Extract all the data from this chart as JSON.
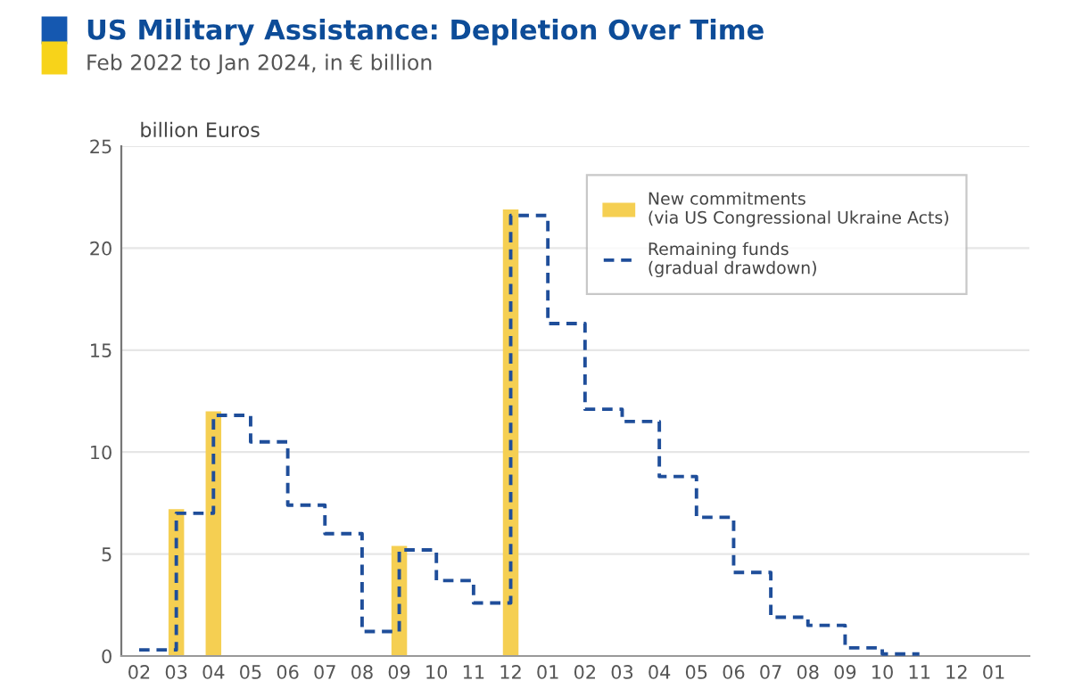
{
  "chart_data": {
    "type": "bar",
    "title": "US Military Assistance: Depletion Over Time",
    "subtitle": "Feb 2022 to Jan 2024, in € billion",
    "ylabel": "billion Euros",
    "categories": [
      "02",
      "03",
      "04",
      "05",
      "06",
      "07",
      "08",
      "09",
      "10",
      "11",
      "12",
      "01",
      "02",
      "03",
      "04",
      "05",
      "06",
      "07",
      "08",
      "09",
      "10",
      "11",
      "12",
      "01"
    ],
    "series": [
      {
        "name": "New commitments\n(via US Congressional Ukraine Acts)",
        "color": "#f5cf52",
        "values": [
          null,
          7.2,
          12.0,
          null,
          null,
          null,
          null,
          5.4,
          null,
          null,
          21.9,
          null,
          null,
          null,
          null,
          null,
          null,
          null,
          null,
          null,
          null,
          null,
          null,
          null
        ]
      },
      {
        "name": "Remaining funds\n(gradual drawdown)",
        "type": "step",
        "color": "#1f4e9a",
        "line_style": "dashed",
        "values": [
          0.3,
          7.0,
          11.8,
          10.5,
          7.4,
          6.0,
          1.2,
          5.2,
          3.7,
          2.6,
          21.6,
          16.3,
          12.1,
          11.5,
          8.8,
          6.8,
          4.1,
          1.9,
          1.5,
          0.4,
          0.1,
          0.1,
          null,
          null
        ]
      }
    ],
    "ylim": [
      0,
      25
    ],
    "yticks": [
      0,
      5,
      10,
      15,
      20,
      25
    ],
    "grid": "y",
    "legend": "top right"
  }
}
